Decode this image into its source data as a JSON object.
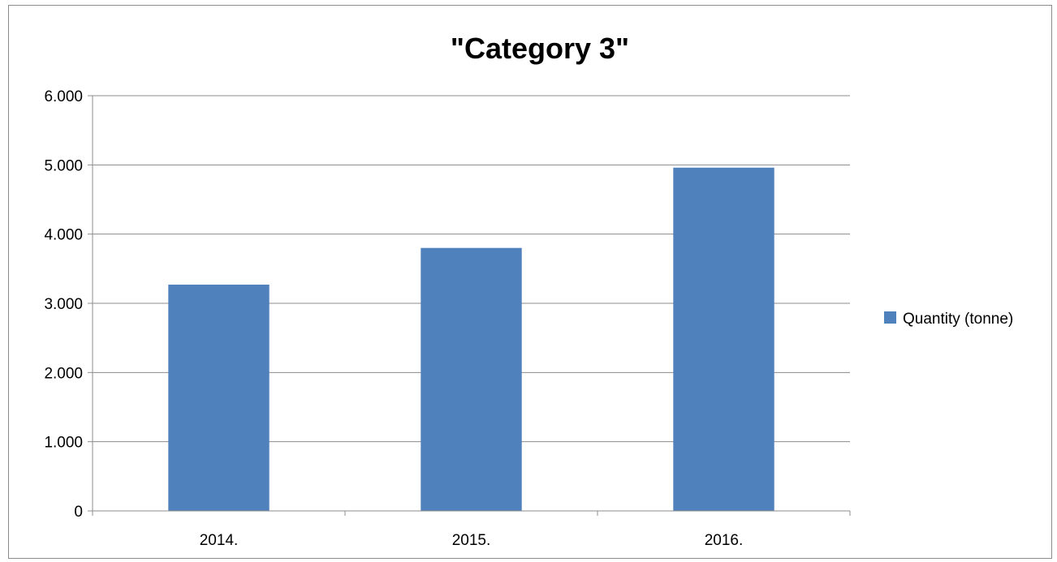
{
  "chart_data": {
    "type": "bar",
    "title": "\"Category 3\"",
    "categories": [
      "2014.",
      "2015.",
      "2016."
    ],
    "series": [
      {
        "name": "Quantity (tonne)",
        "values": [
          3270,
          3800,
          4960
        ],
        "color": "#4f81bd"
      }
    ],
    "ylim": [
      0,
      6000
    ],
    "yticks": [
      0,
      1000,
      2000,
      3000,
      4000,
      5000,
      6000
    ],
    "ytick_labels": [
      "0",
      "1.000",
      "2.000",
      "3.000",
      "4.000",
      "5.000",
      "6.000"
    ],
    "xlabel": "",
    "ylabel": "",
    "grid": true,
    "legend_position": "right"
  }
}
